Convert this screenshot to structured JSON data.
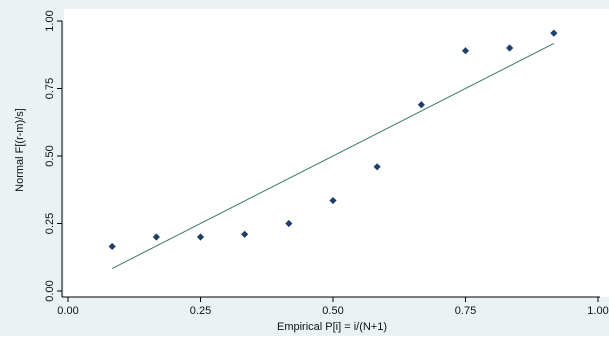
{
  "chart_data": {
    "type": "scatter",
    "title": "",
    "xlabel": "Empirical P[i] = i/(N+1)",
    "ylabel": "Normal F[(r-m)/s]",
    "xlim": [
      0,
      1
    ],
    "ylim": [
      0,
      1
    ],
    "x_ticks": [
      "0.00",
      "0.25",
      "0.50",
      "0.75",
      "1.00"
    ],
    "y_ticks": [
      "0.00",
      "0.25",
      "0.50",
      "0.75",
      "1.00"
    ],
    "grid": false,
    "legend": "none",
    "series": [
      {
        "kind": "points",
        "marker": "diamond",
        "x": [
          0.0833,
          0.1667,
          0.25,
          0.3333,
          0.4167,
          0.5,
          0.5833,
          0.6667,
          0.75,
          0.8333,
          0.9167
        ],
        "y": [
          0.165,
          0.2,
          0.2,
          0.21,
          0.25,
          0.335,
          0.46,
          0.69,
          0.89,
          0.9,
          0.955
        ]
      },
      {
        "kind": "reference-line",
        "x": [
          0.0833,
          0.9167
        ],
        "y": [
          0.0833,
          0.9167
        ]
      }
    ],
    "colors": {
      "points": "#1f3f66",
      "line": "#3a7a6a",
      "plot_background": "#ffffff",
      "outer_background": "#eaf2f3",
      "axis": "#000000"
    }
  }
}
